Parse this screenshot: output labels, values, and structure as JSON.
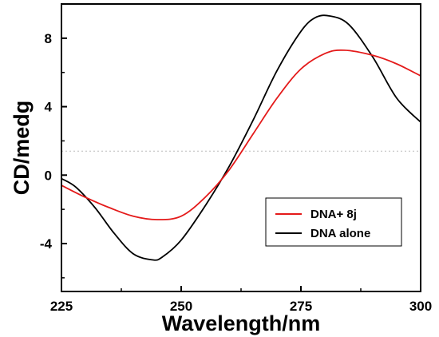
{
  "chart_data": {
    "type": "line",
    "xlabel": "Wavelength/nm",
    "ylabel": "CD/medg",
    "xlim": [
      225,
      300
    ],
    "ylim": [
      -6.8,
      10
    ],
    "xticks": [
      225,
      250,
      275,
      300
    ],
    "xtick_labels": [
      "225",
      "250",
      "275",
      "300"
    ],
    "yticks": [
      -4,
      0,
      4,
      8
    ],
    "ytick_labels": [
      "-4",
      "0",
      "4",
      "8"
    ],
    "reference_line": {
      "y": 1.4,
      "style": "dotted",
      "color": "#bbbbbb"
    },
    "legend_position": "lower-right",
    "series": [
      {
        "name": "DNA+ 8j",
        "color": "#e41a1a",
        "x": [
          225,
          230,
          235,
          240,
          245,
          250,
          255,
          260,
          265,
          270,
          275,
          280,
          284,
          290,
          295,
          300
        ],
        "y": [
          -0.6,
          -1.3,
          -1.9,
          -2.4,
          -2.6,
          -2.4,
          -1.3,
          0.3,
          2.4,
          4.5,
          6.2,
          7.1,
          7.3,
          7.0,
          6.5,
          5.8
        ]
      },
      {
        "name": "DNA alone",
        "color": "#000000",
        "x": [
          225,
          228,
          232,
          236,
          240,
          244,
          246,
          250,
          255,
          260,
          265,
          270,
          275,
          278,
          281,
          285,
          290,
          295,
          300
        ],
        "y": [
          -0.2,
          -0.7,
          -1.9,
          -3.4,
          -4.6,
          -4.95,
          -4.8,
          -3.8,
          -1.8,
          0.5,
          3.2,
          6.1,
          8.4,
          9.2,
          9.3,
          8.8,
          6.9,
          4.5,
          3.1
        ]
      }
    ]
  }
}
